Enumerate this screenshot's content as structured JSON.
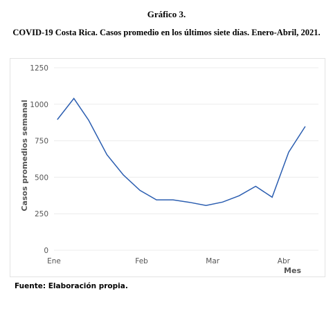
{
  "figure": {
    "label": "Gráfico 3.",
    "title": "COVID-19 Costa Rica. Casos promedio en los últimos siete días. Enero-Abril, 2021.",
    "source": "Fuente: Elaboración propia."
  },
  "chart_data": {
    "type": "line",
    "title": "",
    "xlabel": "Mes",
    "ylabel": "Casos promedios semanal",
    "ylim": [
      0,
      1250
    ],
    "yticks": [
      0,
      250,
      500,
      750,
      1000,
      1250
    ],
    "ytick_labels": [
      "0",
      "250",
      "500",
      "750",
      "1000",
      "1250"
    ],
    "xticks": [
      {
        "label": "Ene",
        "week": 0
      },
      {
        "label": "Feb",
        "week": 5.3
      },
      {
        "label": "Mar",
        "week": 9.6
      },
      {
        "label": "Abr",
        "week": 13.9
      }
    ],
    "grid": true,
    "line_color": "#2a5db0",
    "series": [
      {
        "x": [
          0.2,
          1.2,
          2.1,
          3.2,
          4.2,
          5.2,
          6.2,
          7.2,
          8.2,
          9.2,
          10.2,
          11.2,
          12.2,
          13.2,
          14.2,
          15.2
        ],
        "values": [
          895,
          1040,
          890,
          655,
          515,
          410,
          345,
          345,
          328,
          307,
          330,
          373,
          438,
          363,
          672,
          848
        ]
      }
    ]
  }
}
